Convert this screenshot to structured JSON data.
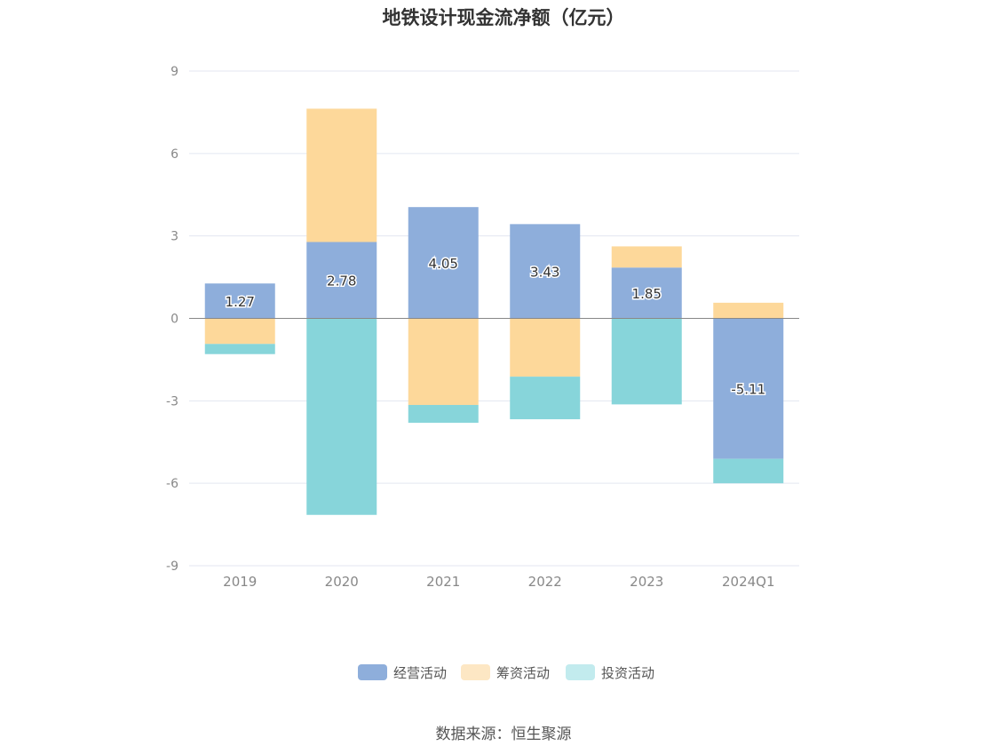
{
  "source": "数据来源：恒生聚源",
  "chart_data": {
    "type": "bar",
    "stacked": true,
    "title": "地铁设计现金流净额（亿元）",
    "categories": [
      "2019",
      "2020",
      "2021",
      "2022",
      "2023",
      "2024Q1"
    ],
    "ylim": [
      -9,
      9
    ],
    "yticks": [
      9,
      6,
      3,
      0,
      -3,
      -6,
      -9
    ],
    "grid": true,
    "legend": "bottom",
    "series": [
      {
        "name": "经营活动",
        "color": "#8eaedb",
        "legend_color": "#8eaedb",
        "values": [
          1.27,
          2.78,
          4.05,
          3.43,
          1.85,
          -5.11
        ],
        "labels": [
          "1.27",
          "2.78",
          "4.05",
          "3.43",
          "1.85",
          "-5.11"
        ]
      },
      {
        "name": "筹资活动",
        "color": "#fdd89a",
        "legend_color": "#fde7c4",
        "values": [
          -0.93,
          4.85,
          -3.15,
          -2.12,
          0.77,
          0.57
        ]
      },
      {
        "name": "投资活动",
        "color": "#87d5da",
        "legend_color": "#c2ebee",
        "values": [
          -0.37,
          -7.15,
          -0.65,
          -1.55,
          -3.13,
          -0.89
        ]
      }
    ]
  }
}
